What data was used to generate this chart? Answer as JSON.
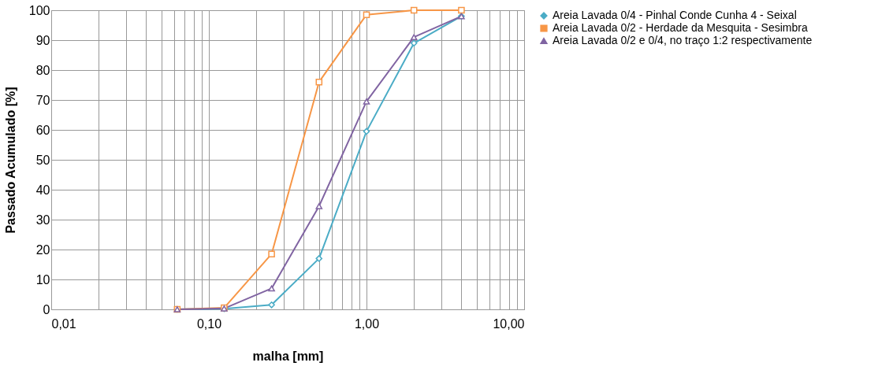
{
  "chart_data": {
    "type": "line",
    "xlabel": "malha [mm]",
    "ylabel": "Passado Acumulado [%]",
    "x": [
      0.063,
      0.125,
      0.25,
      0.5,
      1,
      2,
      4
    ],
    "series": [
      {
        "name": "Areia Lavada 0/4 - Pinhal Conde Cunha 4 - Seixal",
        "color": "#4bacc6",
        "marker": "diamond",
        "values": [
          0,
          0.2,
          1.5,
          17,
          59.5,
          89,
          98
        ]
      },
      {
        "name": "Areia Lavada 0/2 - Herdade da Mesquita - Sesimbra",
        "color": "#f79646",
        "marker": "square",
        "values": [
          0,
          0.5,
          18.5,
          76,
          98.5,
          100,
          100
        ]
      },
      {
        "name": "Areia Lavada 0/2 e  0/4, no traço 1:2 respectivamente",
        "color": "#8064a2",
        "marker": "triangle",
        "values": [
          0,
          0.3,
          7,
          34.5,
          69.5,
          91,
          98
        ]
      }
    ],
    "log": "x",
    "xlim": [
      0.01,
      10
    ],
    "xticks": [
      {
        "value": 0.01,
        "label": "0,01"
      },
      {
        "value": 0.02,
        "label": null
      },
      {
        "value": 0.03,
        "label": null
      },
      {
        "value": 0.04,
        "label": null
      },
      {
        "value": 0.05,
        "label": null
      },
      {
        "value": 0.06,
        "label": null
      },
      {
        "value": 0.07,
        "label": null
      },
      {
        "value": 0.08,
        "label": null
      },
      {
        "value": 0.09,
        "label": null
      },
      {
        "value": 0.1,
        "label": "0,10"
      },
      {
        "value": 0.2,
        "label": null
      },
      {
        "value": 0.3,
        "label": null
      },
      {
        "value": 0.4,
        "label": null
      },
      {
        "value": 0.5,
        "label": null
      },
      {
        "value": 0.6,
        "label": null
      },
      {
        "value": 0.7,
        "label": null
      },
      {
        "value": 0.8,
        "label": null
      },
      {
        "value": 0.9,
        "label": null
      },
      {
        "value": 1,
        "label": "1,00"
      },
      {
        "value": 2,
        "label": null
      },
      {
        "value": 3,
        "label": null
      },
      {
        "value": 4,
        "label": null
      },
      {
        "value": 5,
        "label": null
      },
      {
        "value": 6,
        "label": null
      },
      {
        "value": 7,
        "label": null
      },
      {
        "value": 8,
        "label": null
      },
      {
        "value": 9,
        "label": null
      },
      {
        "value": 10,
        "label": "10,00"
      }
    ],
    "ylim": [
      0,
      100
    ],
    "yticks": [
      0,
      10,
      20,
      30,
      40,
      50,
      60,
      70,
      80,
      90,
      100
    ],
    "grid": true,
    "legend": "right",
    "line_style": "solid"
  }
}
